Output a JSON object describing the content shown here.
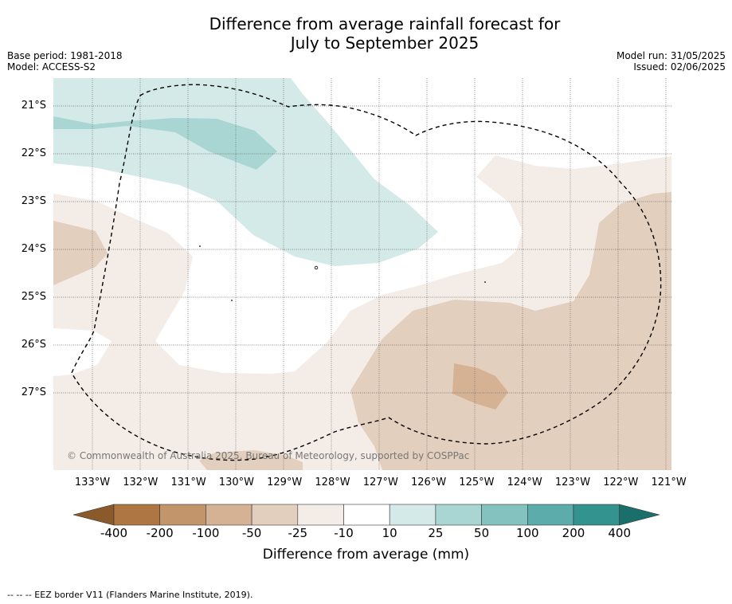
{
  "title_line1": "Difference from average rainfall forecast for",
  "title_line2": "July to September 2025",
  "base_period": "Base period: 1981-2018",
  "model": "Model: ACCESS-S2",
  "model_run": "Model run: 31/05/2025",
  "issued": "Issued: 02/06/2025",
  "copyright": "© Commonwealth of Australia 2025, Bureau of Meteorology, supported by COSPPac",
  "latitudes": [
    "21°S",
    "22°S",
    "23°S",
    "24°S",
    "25°S",
    "26°S",
    "27°S"
  ],
  "longitudes": [
    "133°W",
    "132°W",
    "131°W",
    "130°W",
    "129°W",
    "128°W",
    "127°W",
    "126°W",
    "125°W",
    "124°W",
    "123°W",
    "122°W",
    "121°W"
  ],
  "colorbar": {
    "labels": [
      "-400",
      "-200",
      "-100",
      "-50",
      "-25",
      "-10",
      "10",
      "25",
      "50",
      "100",
      "200",
      "400"
    ],
    "colors": [
      "#8b5a2b",
      "#ad7642",
      "#c2956a",
      "#d5b294",
      "#e3cfbd",
      "#f4ede7",
      "#ffffff",
      "#d4eae8",
      "#a9d6d3",
      "#84c2bf",
      "#5bacaa",
      "#33948f",
      "#1a6f6b"
    ],
    "title": "Difference from average (mm)"
  },
  "footnote": "-- -- -- EEZ border V11 (Flanders Marine Institute, 2019)."
}
